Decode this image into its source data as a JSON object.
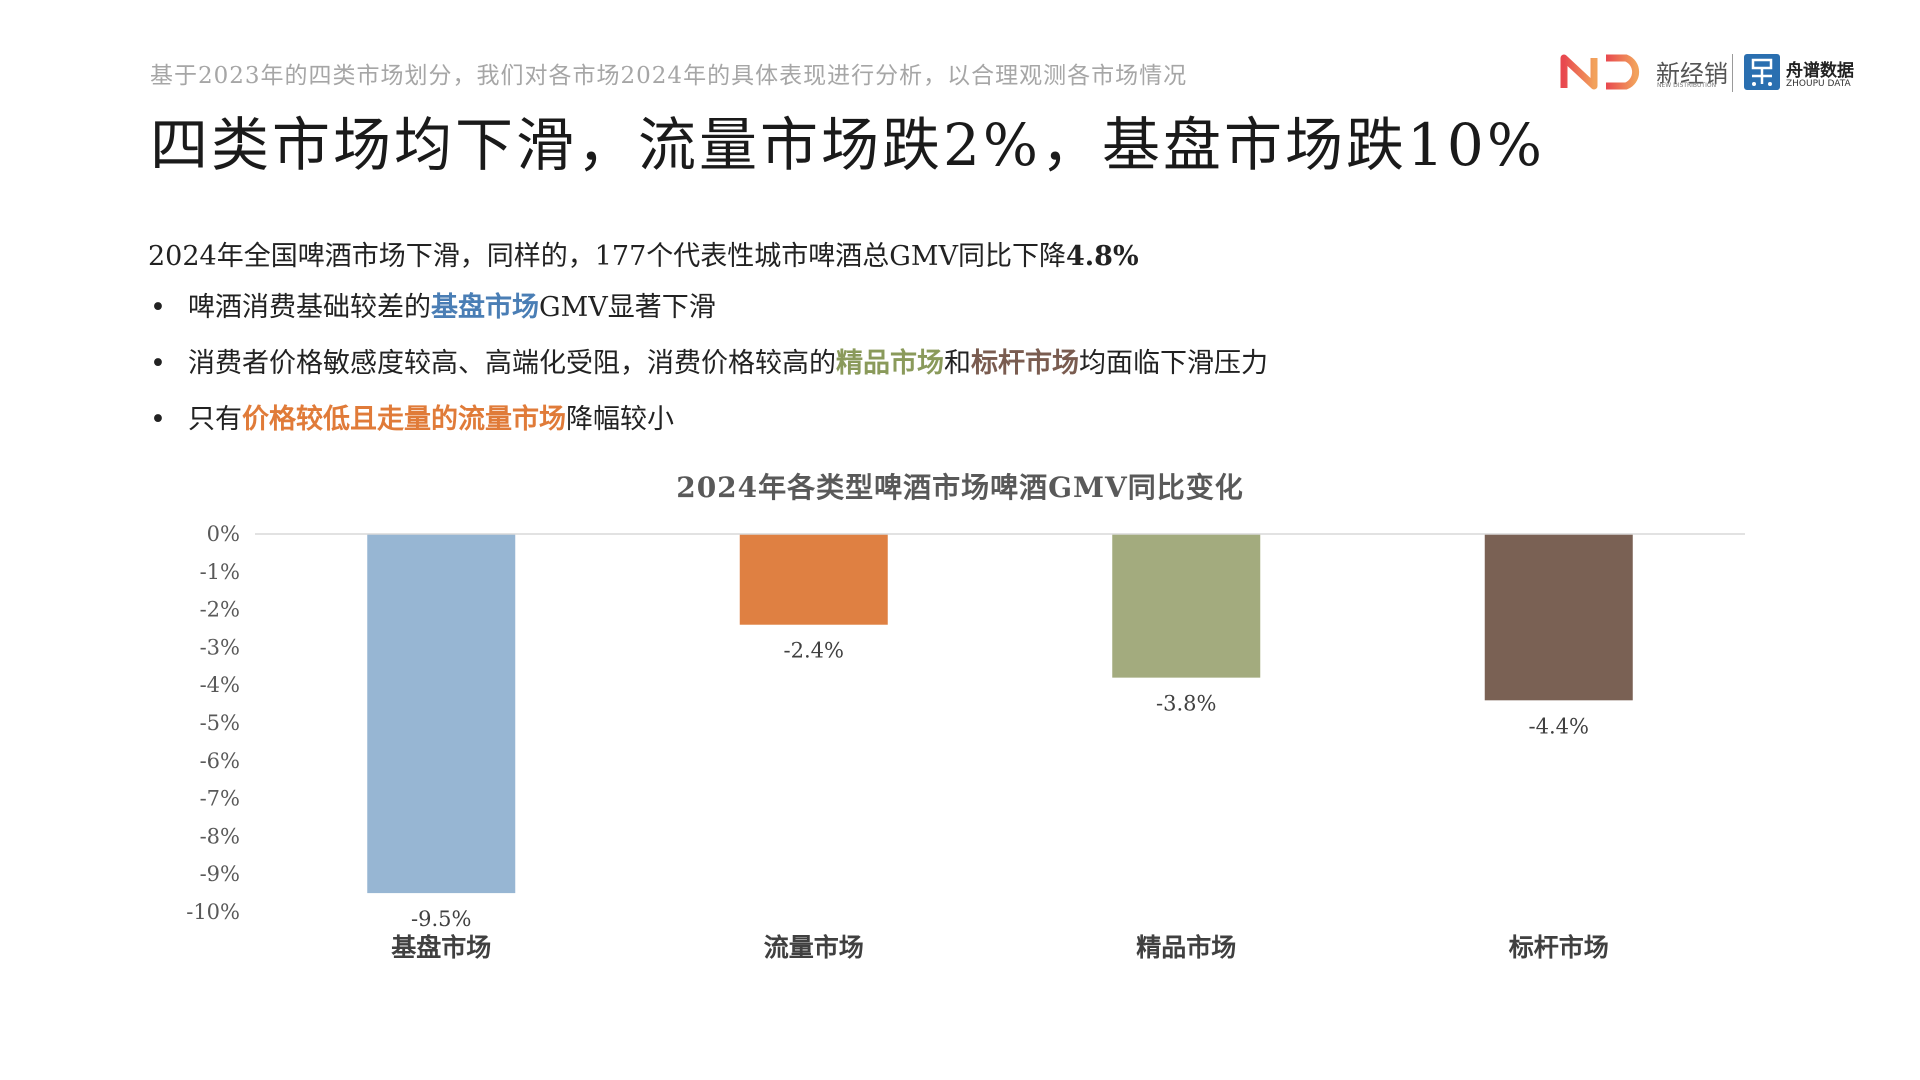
{
  "header": {
    "subtitle": "基于2023年的四类市场划分，我们对各市场2024年的具体表现进行分析，以合理观测各市场情况",
    "headline": "四类市场均下滑，流量市场跌2%，基盘市场跌10%",
    "logos": {
      "xinjingxiao_text": "新经销",
      "xinjingxiao_sub": "NEW DISTRIBUTION",
      "zhoupu_text": "舟谱数据",
      "zhoupu_sub": "ZHOUPU DATA",
      "nd_gradient_start": "#e8484f",
      "nd_gradient_end": "#f2a25c",
      "zhoupu_color": "#2a6fb0"
    }
  },
  "summary": {
    "text": "2024年全国啤酒市场下滑，同样的，177个代表性城市啤酒总GMV同比下降",
    "bold": "4.8%"
  },
  "bullets": [
    {
      "marker": "•",
      "parts": [
        {
          "text": "啤酒消费基础较差的"
        },
        {
          "text": "基盘市场",
          "color": "#4a7eb5"
        },
        {
          "text": "GMV显著下滑"
        }
      ]
    },
    {
      "marker": "•",
      "parts": [
        {
          "text": "消费者价格敏感度较高、高端化受阻，消费价格较高的"
        },
        {
          "text": "精品市场",
          "color": "#8a9a5b"
        },
        {
          "text": "和"
        },
        {
          "text": "标杆市场",
          "color": "#7a5c50"
        },
        {
          "text": "均面临下滑压力"
        }
      ]
    },
    {
      "marker": "•",
      "parts": [
        {
          "text": "只有"
        },
        {
          "text": "价格较低且走量的流量市场",
          "color": "#e07b39"
        },
        {
          "text": "降幅较小"
        }
      ]
    }
  ],
  "chart_data": {
    "type": "bar",
    "title": "2024年各类型啤酒市场啤酒GMV同比变化",
    "categories": [
      "基盘市场",
      "流量市场",
      "精品市场",
      "标杆市场"
    ],
    "values": [
      -9.5,
      -2.4,
      -3.8,
      -4.4
    ],
    "data_labels": [
      "-9.5%",
      "-2.4%",
      "-3.8%",
      "-4.4%"
    ],
    "colors": [
      "#97b6d3",
      "#df8042",
      "#a3ab7e",
      "#7a6154"
    ],
    "yticks": [
      0,
      -1,
      -2,
      -3,
      -4,
      -5,
      -6,
      -7,
      -8,
      -9,
      -10
    ],
    "ytick_labels": [
      "0%",
      "-1%",
      "-2%",
      "-3%",
      "-4%",
      "-5%",
      "-6%",
      "-7%",
      "-8%",
      "-9%",
      "-10%"
    ],
    "ylim": [
      -10,
      0
    ],
    "grid": false,
    "legend": "none"
  }
}
